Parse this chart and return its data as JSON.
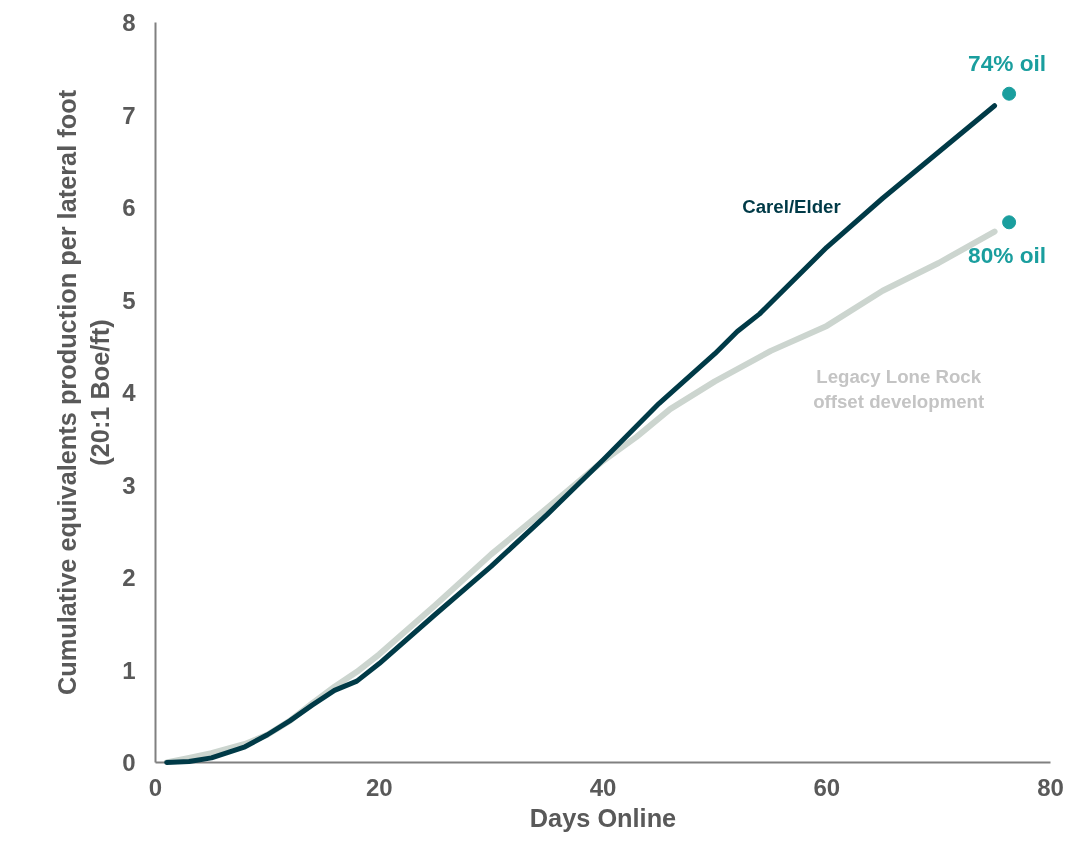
{
  "chart_data": {
    "type": "line",
    "xlabel": "Days Online",
    "ylabel": "Cumulative equivalents production per lateral foot\n(20:1 Boe/ft)",
    "xlim": [
      0,
      80
    ],
    "xticks": [
      0,
      20,
      40,
      60,
      80
    ],
    "ylim": [
      0,
      8
    ],
    "yticks": [
      0,
      1,
      2,
      3,
      4,
      5,
      6,
      7,
      8
    ],
    "grid": false,
    "marker": "none",
    "line_style": "solid",
    "series": [
      {
        "name": "Carel/Elder",
        "color": "#003a47",
        "x": [
          1,
          3,
          5,
          8,
          10,
          12,
          14,
          16,
          18,
          20,
          25,
          30,
          35,
          40,
          45,
          50,
          52,
          54,
          60,
          65,
          70,
          75
        ],
        "values": [
          0,
          0.01,
          0.05,
          0.17,
          0.3,
          0.45,
          0.62,
          0.78,
          0.88,
          1.07,
          1.6,
          2.12,
          2.68,
          3.27,
          3.88,
          4.42,
          4.66,
          4.85,
          5.57,
          6.1,
          6.6,
          7.1
        ]
      },
      {
        "name": "Legacy Lone Rock offset development",
        "color": "#ccd5cf",
        "x": [
          1,
          3,
          5,
          8,
          10,
          12,
          14,
          16,
          18,
          20,
          25,
          30,
          35,
          40,
          43,
          46,
          50,
          55,
          60,
          65,
          70,
          75
        ],
        "values": [
          0,
          0.05,
          0.1,
          0.2,
          0.3,
          0.45,
          0.64,
          0.82,
          0.98,
          1.17,
          1.7,
          2.25,
          2.75,
          3.26,
          3.52,
          3.82,
          4.12,
          4.45,
          4.72,
          5.1,
          5.4,
          5.74
        ]
      },
      {
        "type": "scatter",
        "color": "#1a9e9e",
        "marker": "circle",
        "x": [
          76.3,
          76.3
        ],
        "values": [
          7.23,
          5.84
        ]
      }
    ],
    "annotations": [
      {
        "text": "74% oil",
        "x": 76.3,
        "y": 7.23
      },
      {
        "text": "80% oil",
        "x": 76.3,
        "y": 5.84
      }
    ]
  }
}
